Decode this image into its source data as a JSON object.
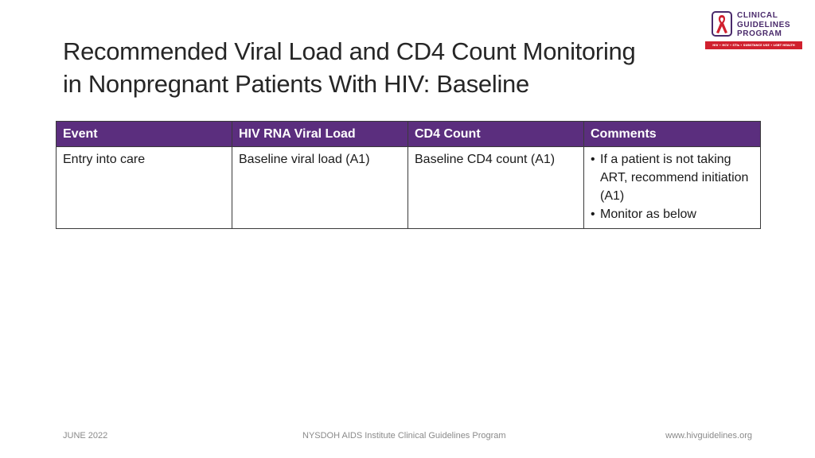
{
  "slide": {
    "title_lines": [
      "Recommended Viral Load and CD4 Count Monitoring",
      "in Nonpregnant Patients With HIV: Baseline"
    ]
  },
  "logo": {
    "lines": [
      "CLINICAL",
      "GUIDELINES",
      "PROGRAM"
    ],
    "bar_text": "HIV • HCV • STIs • SUBSTANCE USE • LGBT HEALTH",
    "brand_color": "#4a2a6b",
    "ribbon_color": "#d0202e"
  },
  "table": {
    "header_color": "#5b2e7e",
    "headers": [
      "Event",
      "HIV RNA Viral Load",
      "CD4 Count",
      "Comments"
    ],
    "rows": [
      {
        "event": "Entry into care",
        "viral_load": "Baseline viral load (A1)",
        "cd4": "Baseline CD4 count (A1)",
        "comments": [
          "If a patient is not taking ART, recommend initiation (A1)",
          "Monitor as below"
        ]
      }
    ]
  },
  "footer": {
    "date": "JUNE 2022",
    "org": "NYSDOH AIDS Institute Clinical Guidelines Program",
    "url": "www.hivguidelines.org"
  }
}
